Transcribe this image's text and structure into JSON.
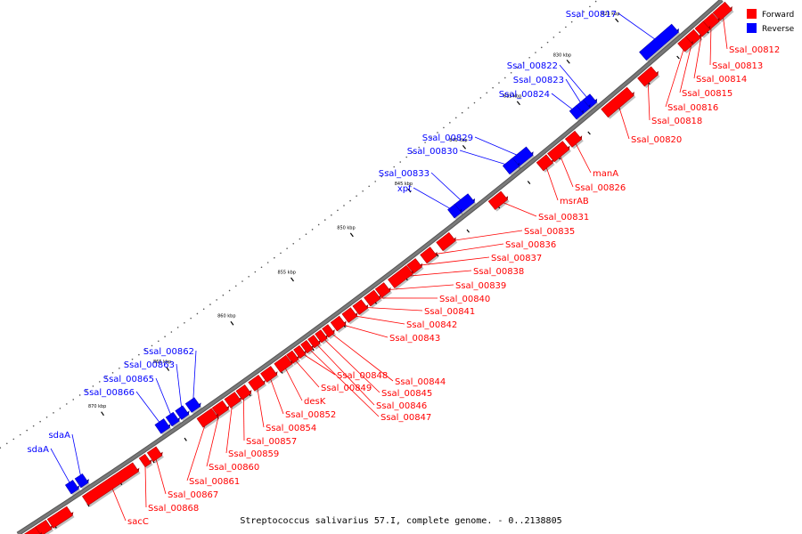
{
  "caption": "Streptococcus salivarius 57.I, complete genome. - 0..2138805",
  "legend": [
    {
      "label": "Forward",
      "color": "#ff0000"
    },
    {
      "label": "Reverse",
      "color": "#0000ff"
    }
  ],
  "colors": {
    "forward": "#ff0000",
    "reverse": "#0000ff",
    "backbone": "#888888"
  },
  "scale_ticks": [
    "820 kbp",
    "825 kbp",
    "830 kbp",
    "835 kbp",
    "840 kbp",
    "845 kbp",
    "850 kbp",
    "855 kbp",
    "860 kbp",
    "865 kbp",
    "870 kbp"
  ],
  "genes": [
    {
      "label": "Ssal_00812",
      "strand": "forward"
    },
    {
      "label": "Ssal_00813",
      "strand": "forward"
    },
    {
      "label": "Ssal_00814",
      "strand": "forward"
    },
    {
      "label": "Ssal_00815",
      "strand": "forward"
    },
    {
      "label": "Ssal_00816",
      "strand": "forward"
    },
    {
      "label": "Ssal_00817",
      "strand": "reverse"
    },
    {
      "label": "Ssal_00818",
      "strand": "forward"
    },
    {
      "label": "Ssal_00820",
      "strand": "forward"
    },
    {
      "label": "Ssal_00822",
      "strand": "reverse"
    },
    {
      "label": "Ssal_00823",
      "strand": "reverse"
    },
    {
      "label": "Ssal_00824",
      "strand": "reverse"
    },
    {
      "label": "manA",
      "strand": "forward"
    },
    {
      "label": "Ssal_00826",
      "strand": "forward"
    },
    {
      "label": "msrAB",
      "strand": "forward"
    },
    {
      "label": "Ssal_00829",
      "strand": "reverse"
    },
    {
      "label": "Ssal_00830",
      "strand": "reverse"
    },
    {
      "label": "Ssal_00831",
      "strand": "forward"
    },
    {
      "label": "Ssal_00833",
      "strand": "reverse"
    },
    {
      "label": "xpt",
      "strand": "reverse"
    },
    {
      "label": "Ssal_00835",
      "strand": "forward"
    },
    {
      "label": "Ssal_00836",
      "strand": "forward"
    },
    {
      "label": "Ssal_00837",
      "strand": "forward"
    },
    {
      "label": "Ssal_00838",
      "strand": "forward"
    },
    {
      "label": "Ssal_00839",
      "strand": "forward"
    },
    {
      "label": "Ssal_00840",
      "strand": "forward"
    },
    {
      "label": "Ssal_00841",
      "strand": "forward"
    },
    {
      "label": "Ssal_00842",
      "strand": "forward"
    },
    {
      "label": "Ssal_00843",
      "strand": "forward"
    },
    {
      "label": "Ssal_00844",
      "strand": "forward"
    },
    {
      "label": "Ssal_00845",
      "strand": "forward"
    },
    {
      "label": "Ssal_00846",
      "strand": "forward"
    },
    {
      "label": "Ssal_00847",
      "strand": "forward"
    },
    {
      "label": "Ssal_00848",
      "strand": "forward"
    },
    {
      "label": "Ssal_00849",
      "strand": "forward"
    },
    {
      "label": "desK",
      "strand": "forward"
    },
    {
      "label": "Ssal_00852",
      "strand": "forward"
    },
    {
      "label": "Ssal_00854",
      "strand": "forward"
    },
    {
      "label": "Ssal_00857",
      "strand": "forward"
    },
    {
      "label": "Ssal_00859",
      "strand": "forward"
    },
    {
      "label": "Ssal_00860",
      "strand": "forward"
    },
    {
      "label": "Ssal_00861",
      "strand": "forward"
    },
    {
      "label": "Ssal_00862",
      "strand": "reverse"
    },
    {
      "label": "Ssal_00863",
      "strand": "reverse"
    },
    {
      "label": "Ssal_00865",
      "strand": "reverse"
    },
    {
      "label": "Ssal_00866",
      "strand": "reverse"
    },
    {
      "label": "Ssal_00867",
      "strand": "forward"
    },
    {
      "label": "Ssal_00868",
      "strand": "forward"
    },
    {
      "label": "sacC",
      "strand": "forward"
    },
    {
      "label": "sdaA",
      "strand": "reverse"
    },
    {
      "label": "sdaA",
      "strand": "reverse"
    }
  ]
}
